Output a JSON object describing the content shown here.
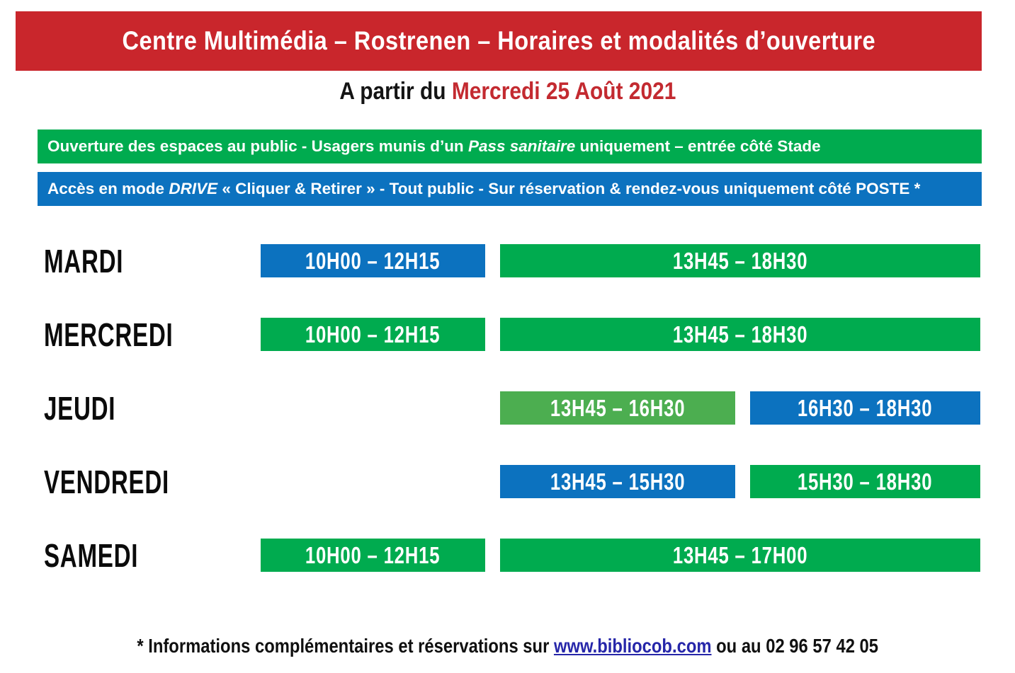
{
  "colors": {
    "header_red": "#C9262C",
    "date_red": "#C32A30",
    "green": "#00AB4F",
    "green_light": "#4CAE50",
    "blue": "#0C72BF",
    "link_blue": "#2626A9"
  },
  "header": {
    "title": "Centre Multimédia – Rostrenen – Horaires et modalités d’ouverture"
  },
  "subtitle": {
    "prefix": "A partir du ",
    "date": "Mercredi 25 Août 2021"
  },
  "banners": [
    {
      "name": "public-access",
      "color": "green",
      "text_before": "Ouverture des espaces au public - Usagers munis d’un ",
      "italic": "Pass sanitaire",
      "text_after": " uniquement – entrée côté Stade"
    },
    {
      "name": "drive-access",
      "color": "blue",
      "text_before": "Accès en mode ",
      "italic": "DRIVE",
      "text_after": " « Cliquer & Retirer » - Tout public - Sur réservation & rendez-vous uniquement côté POSTE *"
    }
  ],
  "schedule": {
    "rows": [
      {
        "day": "MARDI",
        "slots": [
          {
            "label": "10H00 – 12H15",
            "color": "blue",
            "position": "morning"
          },
          {
            "label": "13H45 – 18H30",
            "color": "green",
            "position": "afternoon"
          }
        ]
      },
      {
        "day": "MERCREDI",
        "slots": [
          {
            "label": "10H00 – 12H15",
            "color": "green",
            "position": "morning"
          },
          {
            "label": "13H45 – 18H30",
            "color": "green",
            "position": "afternoon"
          }
        ]
      },
      {
        "day": "JEUDI",
        "slots": [
          {
            "label": "13H45 – 16H30",
            "color": "green-light",
            "position": "afternoon-early"
          },
          {
            "label": "16H30 – 18H30",
            "color": "blue",
            "position": "afternoon-late"
          }
        ]
      },
      {
        "day": "VENDREDI",
        "slots": [
          {
            "label": "13H45 – 15H30",
            "color": "blue",
            "position": "afternoon-early"
          },
          {
            "label": "15H30 – 18H30",
            "color": "green",
            "position": "afternoon-late"
          }
        ]
      },
      {
        "day": "SAMEDI",
        "slots": [
          {
            "label": "10H00 – 12H15",
            "color": "green",
            "position": "morning"
          },
          {
            "label": "13H45 – 17H00",
            "color": "green",
            "position": "afternoon"
          }
        ]
      }
    ]
  },
  "footer": {
    "prefix": "* Informations complémentaires et réservations sur ",
    "link": "www.bibliocob.com",
    "suffix": " ou au 02 96 57 42 05"
  }
}
